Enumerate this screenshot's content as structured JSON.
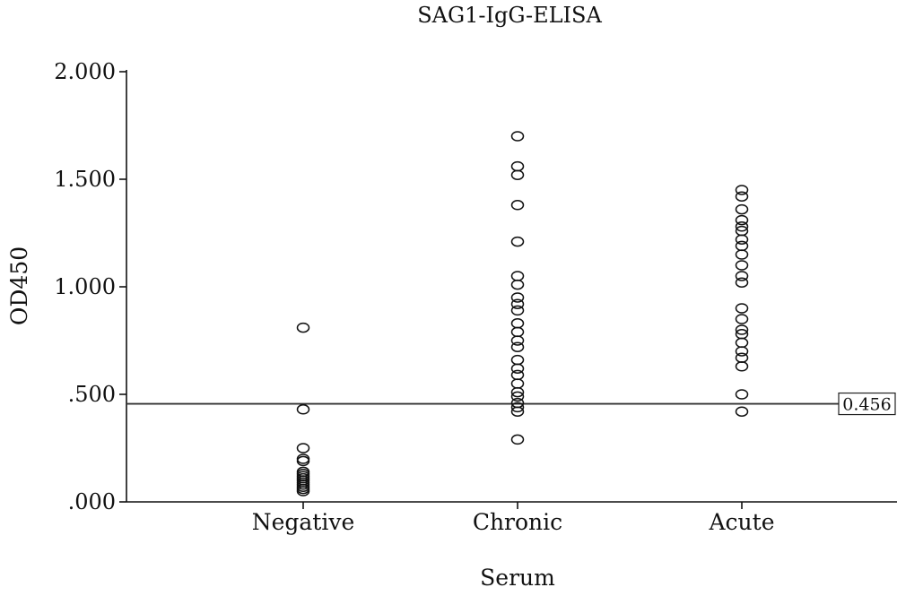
{
  "chart_data": {
    "type": "scatter",
    "title": "SAG1-IgG-ELISA",
    "xlabel": "Serum",
    "ylabel": "OD450",
    "categories": [
      "Negative",
      "Chronic",
      "Acute"
    ],
    "ylim": [
      0,
      2
    ],
    "yticks": [
      0,
      0.5,
      1,
      1.5,
      2
    ],
    "ytick_labels": [
      ".000",
      ".500",
      "1.000",
      "1.500",
      "2.000"
    ],
    "grid": false,
    "reference_line": {
      "value": 0.456,
      "label": "0.456"
    },
    "series": [
      {
        "category": "Negative",
        "values": [
          0.81,
          0.43,
          0.25,
          0.2,
          0.19,
          0.14,
          0.13,
          0.12,
          0.11,
          0.1,
          0.09,
          0.08,
          0.07,
          0.06,
          0.05
        ]
      },
      {
        "category": "Chronic",
        "values": [
          1.7,
          1.56,
          1.52,
          1.38,
          1.21,
          1.05,
          1.01,
          0.95,
          0.92,
          0.89,
          0.83,
          0.79,
          0.75,
          0.72,
          0.66,
          0.62,
          0.59,
          0.55,
          0.51,
          0.49,
          0.46,
          0.44,
          0.42,
          0.29
        ]
      },
      {
        "category": "Acute",
        "values": [
          1.45,
          1.42,
          1.36,
          1.31,
          1.28,
          1.26,
          1.22,
          1.19,
          1.15,
          1.1,
          1.05,
          1.02,
          0.9,
          0.85,
          0.8,
          0.78,
          0.74,
          0.7,
          0.67,
          0.63,
          0.5,
          0.42
        ]
      }
    ]
  }
}
